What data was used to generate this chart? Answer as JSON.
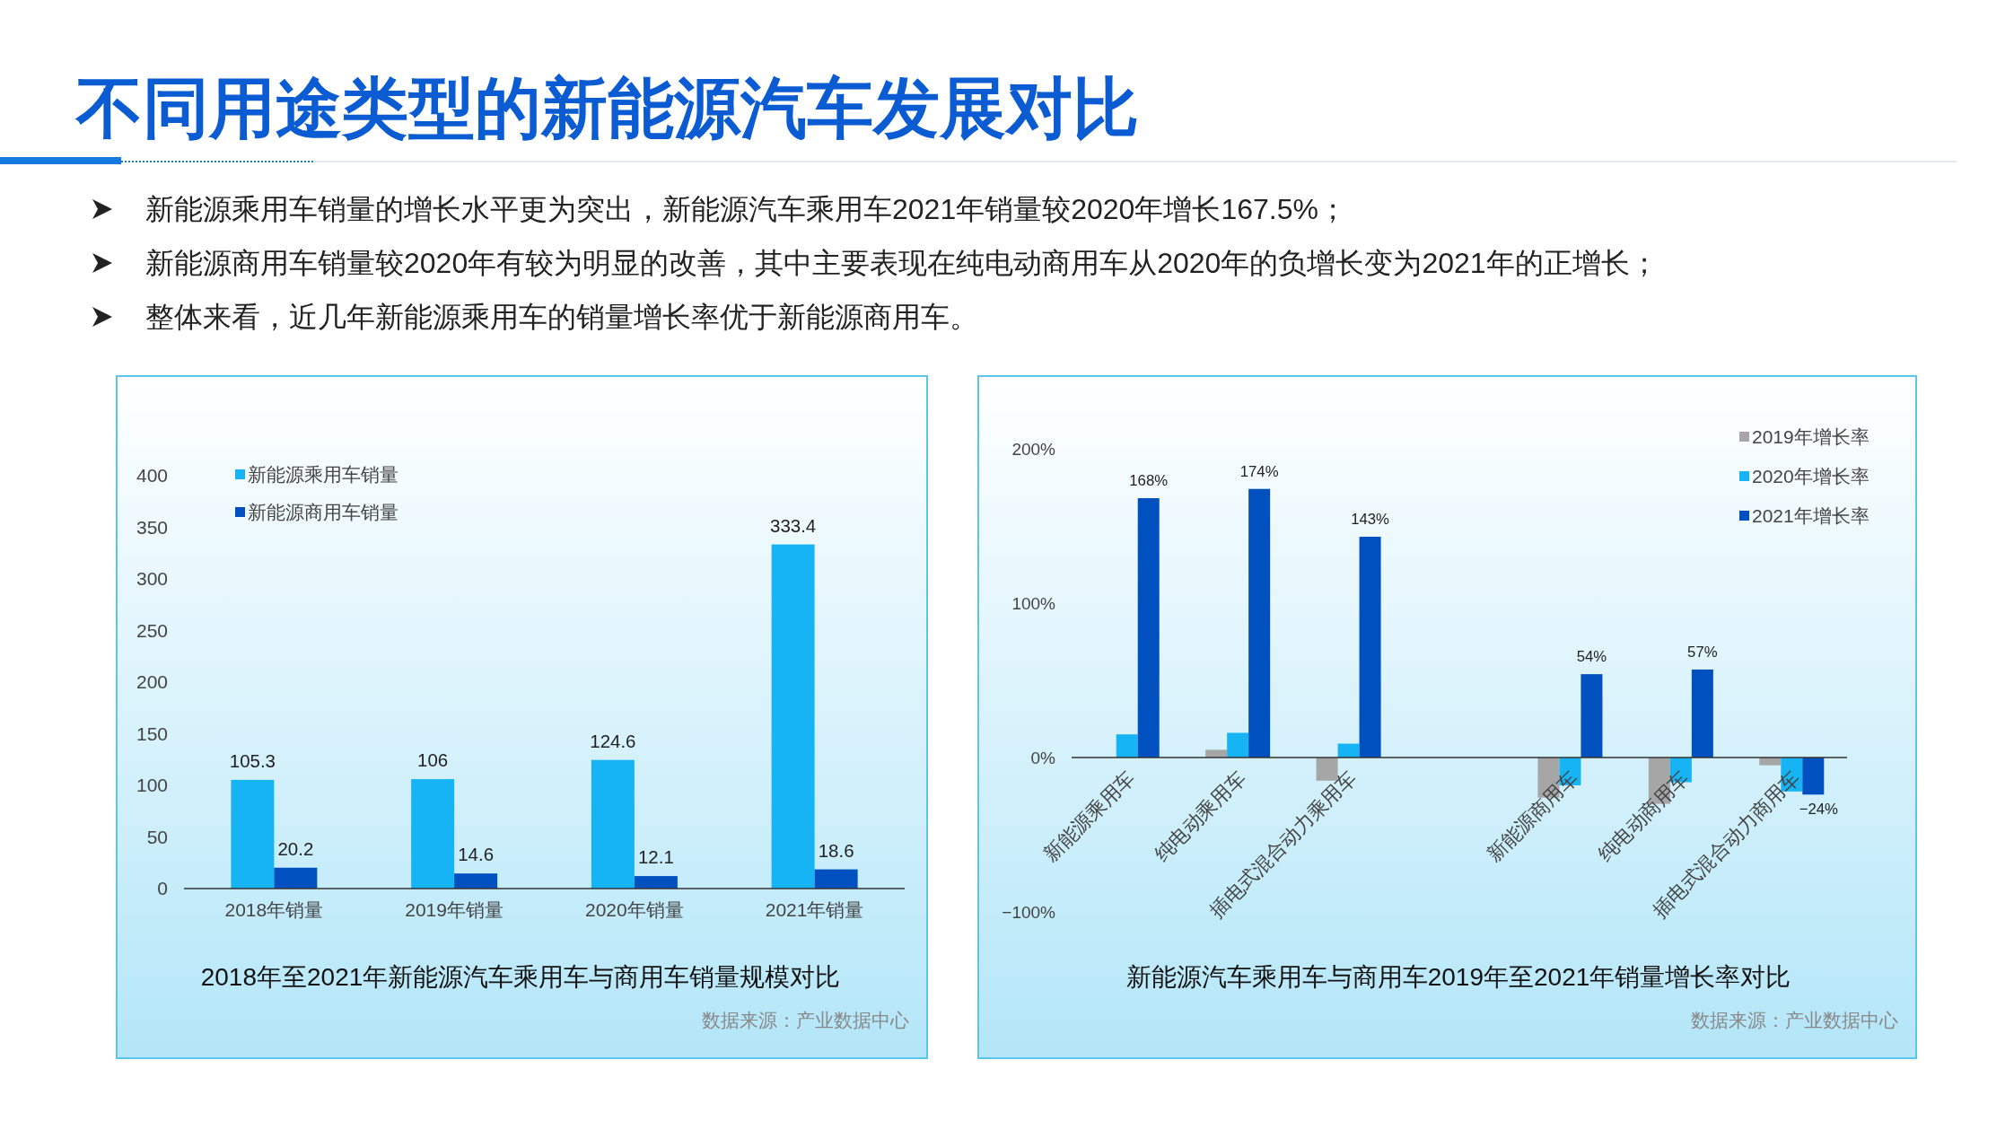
{
  "chart_data": [
    {
      "type": "other",
      "title": "不同用途类型的新能源汽车发展对比",
      "annotations": [
        "新能源乘用车销量的增长水平更为突出，新能源汽车乘用车2021年销量较2020年增长167.5%；",
        "新能源商用车销量较2020年有较为明显的改善，其中主要表现在纯电动商用车从2020年的负增长变为2021年的正增长；",
        "整体来看，近几年新能源乘用车的销量增长率优于新能源商用车。"
      ]
    },
    {
      "type": "bar",
      "title": "2018年至2021年新能源汽车乘用车与商用车销量规模对比",
      "annotations": [
        "数据来源：产业数据中心"
      ],
      "categories": [
        "2018年销量",
        "2019年销量",
        "2020年销量",
        "2021年销量"
      ],
      "series": [
        {
          "name": "新能源乘用车销量",
          "color": "#17b4f5",
          "values": [
            105.3,
            106,
            124.6,
            333.4
          ]
        },
        {
          "name": "新能源商用车销量",
          "color": "#0050c0",
          "values": [
            20.2,
            14.6,
            12.1,
            18.6
          ]
        }
      ],
      "ylim": [
        0,
        400
      ],
      "yticks": [
        0,
        50,
        100,
        150,
        200,
        250,
        300,
        350,
        400
      ],
      "data_labels": true,
      "legend": "top left"
    },
    {
      "type": "bar",
      "title": "新能源汽车乘用车与商用车2019年至2021年销量增长率对比",
      "annotations": [
        "数据来源：产业数据中心"
      ],
      "categories": [
        "新能源乘用车",
        "纯电动乘用车",
        "插电式混合动力乘用车",
        null,
        "新能源商用车",
        "纯电动商用车",
        "插电式混合动力商用车"
      ],
      "series": [
        {
          "name": "2019年增长率",
          "color": "#a6a6a6",
          "values": [
            0,
            5,
            -15,
            null,
            -26,
            -30,
            -5
          ]
        },
        {
          "name": "2020年增长率",
          "color": "#17b4f5",
          "values": [
            15,
            16,
            9,
            null,
            -18,
            -16,
            -22
          ]
        },
        {
          "name": "2021年增长率",
          "color": "#0050c0",
          "values": [
            168,
            174,
            143,
            null,
            54,
            57,
            -24
          ],
          "value_labels": [
            "168%",
            "174%",
            "143%",
            null,
            "54%",
            "57%",
            "−24%"
          ]
        }
      ],
      "ylim": [
        -100,
        200
      ],
      "yticks": [
        {
          "value": -100,
          "label": "−100%"
        },
        {
          "value": 0,
          "label": "0%"
        },
        {
          "value": 100,
          "label": "100%"
        },
        {
          "value": 200,
          "label": "200%"
        }
      ],
      "legend": "top right"
    }
  ]
}
